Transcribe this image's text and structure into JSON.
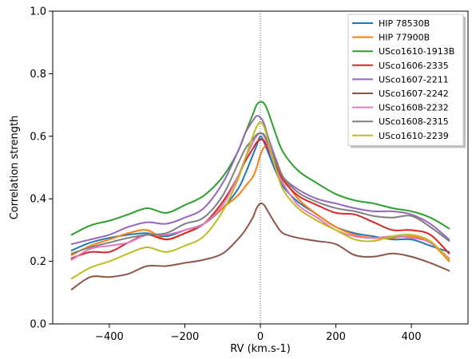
{
  "chart_data": {
    "type": "line",
    "title": "",
    "xlabel": "RV (km.s-1)",
    "ylabel": "Correlation strength",
    "xlim": [
      -550,
      550
    ],
    "ylim": [
      0.0,
      1.0
    ],
    "xticks": [
      -400,
      -200,
      0,
      200,
      400
    ],
    "xtick_labels": [
      "−400",
      "−200",
      "0",
      "200",
      "400"
    ],
    "yticks": [
      0.0,
      0.2,
      0.4,
      0.6,
      0.8,
      1.0
    ],
    "ytick_labels": [
      "0.0",
      "0.2",
      "0.4",
      "0.6",
      "0.8",
      "1.0"
    ],
    "vline_x": 0,
    "vline_style": "dotted",
    "grid": false,
    "legend_position": "top-right",
    "x": [
      -500,
      -450,
      -400,
      -350,
      -300,
      -250,
      -200,
      -150,
      -100,
      -60,
      -40,
      -20,
      -10,
      0,
      10,
      20,
      40,
      60,
      100,
      150,
      200,
      250,
      300,
      350,
      400,
      450,
      500
    ],
    "series": [
      {
        "name": "HIP 78530B",
        "color": "#1f77b4",
        "values": [
          0.235,
          0.26,
          0.275,
          0.285,
          0.29,
          0.28,
          0.3,
          0.32,
          0.37,
          0.43,
          0.48,
          0.54,
          0.57,
          0.6,
          0.58,
          0.55,
          0.49,
          0.44,
          0.39,
          0.35,
          0.31,
          0.29,
          0.28,
          0.27,
          0.27,
          0.25,
          0.23
        ]
      },
      {
        "name": "HIP 77900B",
        "color": "#ff7f0e",
        "values": [
          0.22,
          0.25,
          0.27,
          0.29,
          0.3,
          0.27,
          0.29,
          0.32,
          0.37,
          0.41,
          0.44,
          0.47,
          0.5,
          0.54,
          0.565,
          0.565,
          0.53,
          0.47,
          0.4,
          0.35,
          0.31,
          0.285,
          0.275,
          0.275,
          0.28,
          0.26,
          0.2
        ]
      },
      {
        "name": "USco1610-1913B",
        "color": "#2ca02c",
        "values": [
          0.285,
          0.315,
          0.33,
          0.35,
          0.37,
          0.355,
          0.38,
          0.41,
          0.47,
          0.55,
          0.61,
          0.67,
          0.7,
          0.71,
          0.705,
          0.68,
          0.61,
          0.55,
          0.49,
          0.45,
          0.415,
          0.395,
          0.385,
          0.37,
          0.36,
          0.34,
          0.305
        ]
      },
      {
        "name": "USco1606-2335",
        "color": "#d62728",
        "values": [
          0.21,
          0.23,
          0.23,
          0.26,
          0.285,
          0.27,
          0.29,
          0.32,
          0.39,
          0.47,
          0.52,
          0.56,
          0.58,
          0.59,
          0.585,
          0.56,
          0.51,
          0.46,
          0.41,
          0.38,
          0.355,
          0.35,
          0.325,
          0.3,
          0.3,
          0.285,
          0.225
        ]
      },
      {
        "name": "USco1607-2211",
        "color": "#9467bd",
        "values": [
          0.255,
          0.27,
          0.285,
          0.31,
          0.325,
          0.32,
          0.34,
          0.37,
          0.45,
          0.55,
          0.61,
          0.65,
          0.665,
          0.66,
          0.64,
          0.6,
          0.53,
          0.47,
          0.43,
          0.4,
          0.385,
          0.37,
          0.36,
          0.36,
          0.35,
          0.32,
          0.27
        ]
      },
      {
        "name": "USco1607-2242",
        "color": "#8c564b",
        "values": [
          0.11,
          0.15,
          0.15,
          0.16,
          0.185,
          0.185,
          0.195,
          0.205,
          0.225,
          0.27,
          0.3,
          0.34,
          0.37,
          0.385,
          0.38,
          0.36,
          0.32,
          0.29,
          0.275,
          0.265,
          0.255,
          0.22,
          0.215,
          0.225,
          0.215,
          0.195,
          0.17
        ]
      },
      {
        "name": "USco1608-2232",
        "color": "#e377c2",
        "values": [
          0.205,
          0.24,
          0.25,
          0.26,
          0.285,
          0.285,
          0.3,
          0.32,
          0.38,
          0.47,
          0.53,
          0.58,
          0.6,
          0.61,
          0.6,
          0.57,
          0.5,
          0.45,
          0.38,
          0.34,
          0.3,
          0.28,
          0.275,
          0.28,
          0.275,
          0.26,
          0.21
        ]
      },
      {
        "name": "USco1608-2315",
        "color": "#7f7f7f",
        "values": [
          0.225,
          0.245,
          0.26,
          0.275,
          0.285,
          0.29,
          0.32,
          0.34,
          0.41,
          0.51,
          0.56,
          0.59,
          0.605,
          0.61,
          0.605,
          0.58,
          0.52,
          0.47,
          0.42,
          0.39,
          0.37,
          0.36,
          0.345,
          0.34,
          0.345,
          0.31,
          0.265
        ]
      },
      {
        "name": "USco1610-2239",
        "color": "#bcbd22",
        "values": [
          0.145,
          0.18,
          0.2,
          0.225,
          0.245,
          0.23,
          0.25,
          0.28,
          0.36,
          0.46,
          0.53,
          0.6,
          0.63,
          0.645,
          0.63,
          0.59,
          0.5,
          0.43,
          0.37,
          0.33,
          0.3,
          0.27,
          0.265,
          0.28,
          0.285,
          0.265,
          0.205
        ]
      }
    ]
  }
}
